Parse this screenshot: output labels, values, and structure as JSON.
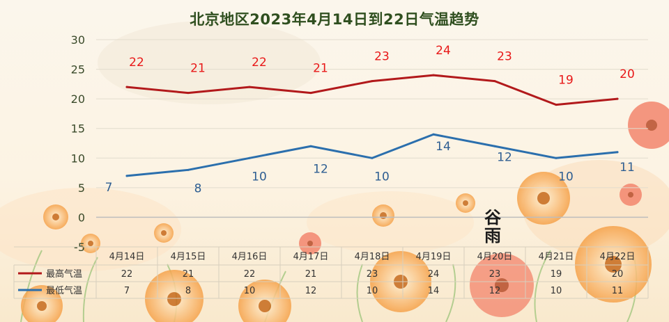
{
  "chart_data": {
    "type": "line",
    "title": "北京地区2023年4月14日到22日气温趋势",
    "categories": [
      "4月14日",
      "4月15日",
      "4月16日",
      "4月17日",
      "4月18日",
      "4月19日",
      "4月20日",
      "4月21日",
      "4月22日"
    ],
    "series": [
      {
        "name": "最高气温",
        "values": [
          22,
          21,
          22,
          21,
          23,
          24,
          23,
          19,
          20
        ],
        "color": "#b2191b",
        "label_color": "#e81818"
      },
      {
        "name": "最低气温",
        "values": [
          7,
          8,
          10,
          12,
          10,
          14,
          12,
          10,
          11
        ],
        "color": "#2b6fad",
        "label_color": "#2e5e92"
      }
    ],
    "ylim": [
      -5,
      30
    ],
    "yticks": [
      -5,
      0,
      5,
      10,
      15,
      20,
      25,
      30
    ],
    "grid": true,
    "legend": "data-table-left",
    "data_table": true
  },
  "decor": {
    "seal_text": "谷雨",
    "seal_glyphs": [
      "谷",
      "雨"
    ]
  }
}
